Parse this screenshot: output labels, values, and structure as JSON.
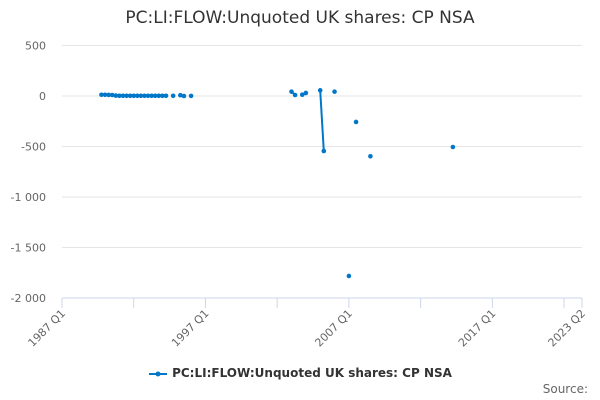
{
  "chart_data": {
    "type": "line",
    "title": "PC:LI:FLOW:Unquoted UK shares: CP NSA",
    "xlabel": "",
    "ylabel": "",
    "x_ticks": [
      "1987 Q1",
      "1997 Q1",
      "2007 Q1",
      "2017 Q1",
      "2023 Q2"
    ],
    "y_ticks": [
      500,
      0,
      -500,
      -1000,
      -1500,
      -2000
    ],
    "y_tick_labels": [
      "500",
      "0",
      "-500",
      "-1 000",
      "-1 500",
      "-2 000"
    ],
    "ylim": [
      -2000,
      500
    ],
    "xlim": [
      "1987 Q1",
      "2023 Q2"
    ],
    "grid": "horizontal",
    "legend_position": "bottom",
    "color": "#0077c8",
    "series": [
      {
        "name": "PC:LI:FLOW:Unquoted UK shares: CP NSA",
        "points": [
          [
            "1989 Q4",
            12
          ],
          [
            "1990 Q1",
            12
          ],
          [
            "1990 Q2",
            11
          ],
          [
            "1990 Q3",
            10
          ],
          [
            "1990 Q4",
            4
          ],
          [
            "1991 Q1",
            2
          ],
          [
            "1991 Q2",
            2
          ],
          [
            "1991 Q3",
            2
          ],
          [
            "1991 Q4",
            2
          ],
          [
            "1992 Q1",
            2
          ],
          [
            "1992 Q2",
            2
          ],
          [
            "1992 Q3",
            2
          ],
          [
            "1992 Q4",
            2
          ],
          [
            "1993 Q1",
            2
          ],
          [
            "1993 Q2",
            2
          ],
          [
            "1993 Q3",
            2
          ],
          [
            "1993 Q4",
            2
          ],
          [
            "1994 Q1",
            2
          ],
          [
            "1994 Q2",
            2
          ],
          [
            "1994 Q4",
            2
          ],
          [
            "1995 Q2",
            8
          ],
          [
            "1995 Q3",
            0
          ],
          [
            "1996 Q1",
            1
          ],
          [
            "2003 Q1",
            43
          ],
          [
            "2003 Q2",
            10
          ],
          [
            "2003 Q4",
            13
          ],
          [
            "2004 Q1",
            30
          ],
          [
            "2005 Q1",
            56
          ],
          [
            "2005 Q2",
            -545
          ],
          [
            "2006 Q1",
            43
          ],
          [
            "2007 Q1",
            -1782
          ],
          [
            "2007 Q3",
            -257
          ],
          [
            "2008 Q3",
            -597
          ],
          [
            "2014 Q2",
            -505
          ]
        ]
      }
    ]
  },
  "source_label": "Source:"
}
